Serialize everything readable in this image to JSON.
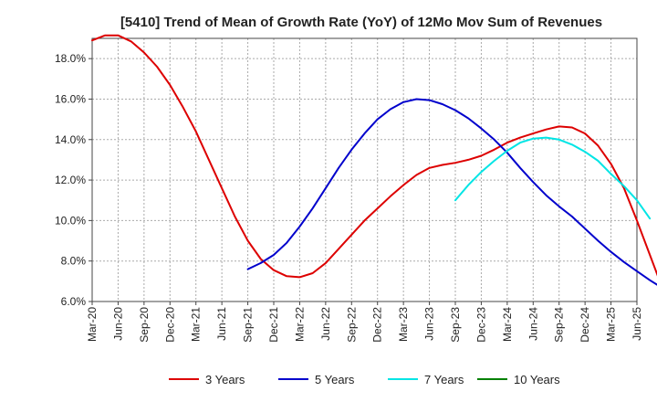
{
  "chart_data": {
    "type": "line",
    "title": "[5410]  Trend of Mean of Growth Rate (YoY) of 12Mo Mov Sum of Revenues",
    "xlabel": "",
    "ylabel": "",
    "ylim": [
      6.0,
      19.0
    ],
    "y_ticks": [
      6.0,
      8.0,
      10.0,
      12.0,
      14.0,
      16.0,
      18.0
    ],
    "y_tick_labels": [
      "6.0%",
      "8.0%",
      "10.0%",
      "12.0%",
      "14.0%",
      "16.0%",
      "18.0%"
    ],
    "x_tick_labels": [
      "Mar-20",
      "Jun-20",
      "Sep-20",
      "Dec-20",
      "Mar-21",
      "Jun-21",
      "Sep-21",
      "Dec-21",
      "Mar-22",
      "Jun-22",
      "Sep-22",
      "Dec-22",
      "Mar-23",
      "Jun-23",
      "Sep-23",
      "Dec-23",
      "Mar-24",
      "Jun-24",
      "Sep-24",
      "Dec-24",
      "Mar-25",
      "Jun-25"
    ],
    "grid": true,
    "legend_position": "bottom",
    "series": [
      {
        "name": "3 Years",
        "color": "#dd0000",
        "points": [
          [
            0,
            18.9
          ],
          [
            1,
            19.15
          ],
          [
            2,
            19.15
          ],
          [
            3,
            18.85
          ],
          [
            4,
            18.3
          ],
          [
            5,
            17.6
          ],
          [
            6,
            16.7
          ],
          [
            7,
            15.6
          ],
          [
            8,
            14.4
          ],
          [
            9,
            13.0
          ],
          [
            10,
            11.6
          ],
          [
            11,
            10.2
          ],
          [
            12,
            9.0
          ],
          [
            13,
            8.1
          ],
          [
            14,
            7.55
          ],
          [
            15,
            7.25
          ],
          [
            16,
            7.2
          ],
          [
            17,
            7.4
          ],
          [
            18,
            7.9
          ],
          [
            19,
            8.6
          ],
          [
            20,
            9.3
          ],
          [
            21,
            10.0
          ],
          [
            22,
            10.6
          ],
          [
            23,
            11.2
          ],
          [
            24,
            11.75
          ],
          [
            25,
            12.25
          ],
          [
            26,
            12.6
          ],
          [
            27,
            12.75
          ],
          [
            28,
            12.85
          ],
          [
            29,
            13.0
          ],
          [
            30,
            13.2
          ],
          [
            31,
            13.5
          ],
          [
            32,
            13.85
          ],
          [
            33,
            14.1
          ],
          [
            34,
            14.3
          ],
          [
            35,
            14.5
          ],
          [
            36,
            14.65
          ],
          [
            37,
            14.6
          ],
          [
            38,
            14.3
          ],
          [
            39,
            13.7
          ],
          [
            40,
            12.8
          ],
          [
            41,
            11.6
          ],
          [
            42,
            10.0
          ],
          [
            43,
            8.3
          ],
          [
            44,
            6.6
          ]
        ]
      },
      {
        "name": "5 Years",
        "color": "#0000cc",
        "points": [
          [
            12,
            7.6
          ],
          [
            13,
            7.9
          ],
          [
            14,
            8.3
          ],
          [
            15,
            8.9
          ],
          [
            16,
            9.7
          ],
          [
            17,
            10.6
          ],
          [
            18,
            11.6
          ],
          [
            19,
            12.6
          ],
          [
            20,
            13.5
          ],
          [
            21,
            14.3
          ],
          [
            22,
            15.0
          ],
          [
            23,
            15.5
          ],
          [
            24,
            15.85
          ],
          [
            25,
            16.0
          ],
          [
            26,
            15.95
          ],
          [
            27,
            15.75
          ],
          [
            28,
            15.45
          ],
          [
            29,
            15.05
          ],
          [
            30,
            14.55
          ],
          [
            31,
            14.0
          ],
          [
            32,
            13.35
          ],
          [
            33,
            12.6
          ],
          [
            34,
            11.9
          ],
          [
            35,
            11.25
          ],
          [
            36,
            10.7
          ],
          [
            37,
            10.2
          ],
          [
            38,
            9.6
          ],
          [
            39,
            9.0
          ],
          [
            40,
            8.45
          ],
          [
            41,
            7.95
          ],
          [
            42,
            7.5
          ],
          [
            43,
            7.05
          ],
          [
            44,
            6.65
          ]
        ]
      },
      {
        "name": "7 Years",
        "color": "#00e5e5",
        "points": [
          [
            28,
            11.0
          ],
          [
            29,
            11.75
          ],
          [
            30,
            12.4
          ],
          [
            31,
            12.95
          ],
          [
            32,
            13.45
          ],
          [
            33,
            13.85
          ],
          [
            34,
            14.05
          ],
          [
            35,
            14.1
          ],
          [
            36,
            14.0
          ],
          [
            37,
            13.75
          ],
          [
            38,
            13.4
          ],
          [
            39,
            12.95
          ],
          [
            40,
            12.3
          ],
          [
            41,
            11.7
          ],
          [
            42,
            11.0
          ],
          [
            43,
            10.1
          ]
        ]
      },
      {
        "name": "10 Years",
        "color": "#008000",
        "points": []
      }
    ]
  }
}
